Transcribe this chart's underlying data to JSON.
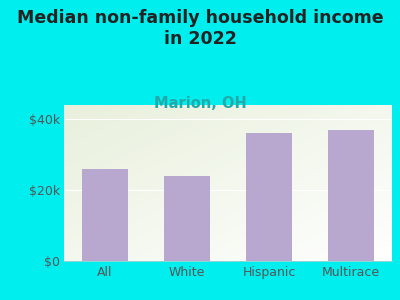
{
  "title": "Median non-family household income\nin 2022",
  "subtitle": "Marion, OH",
  "categories": [
    "All",
    "White",
    "Hispanic",
    "Multirace"
  ],
  "values": [
    26000,
    24000,
    36000,
    37000
  ],
  "bar_color": "#b8a8d0",
  "background_color": "#00EEEE",
  "plot_bg_top_left": "#e8f0dc",
  "plot_bg_bottom": "#ffffff",
  "title_fontsize": 12.5,
  "subtitle_fontsize": 10.5,
  "subtitle_color": "#22AAAA",
  "tick_color": "#555555",
  "ylim": [
    0,
    44000
  ],
  "yticks": [
    0,
    20000,
    40000
  ],
  "ytick_labels": [
    "$0",
    "$20k",
    "$40k"
  ]
}
